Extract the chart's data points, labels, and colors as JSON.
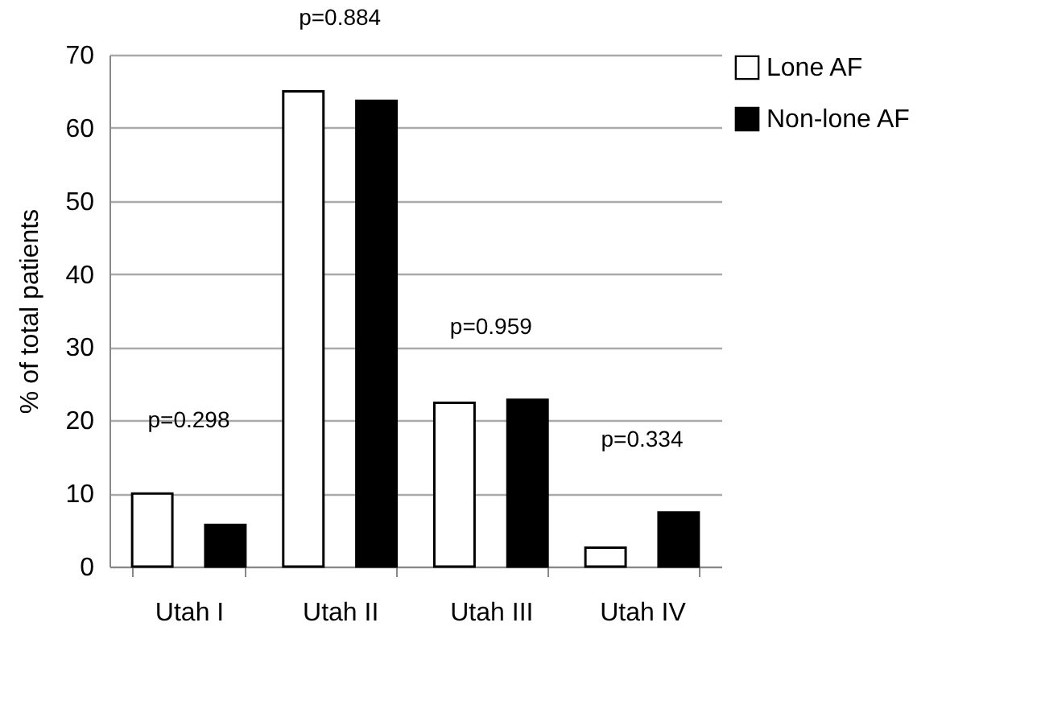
{
  "chart_data": {
    "type": "bar",
    "ylabel": "% of total patients",
    "categories": [
      "Utah I",
      "Utah II",
      "Utah III",
      "Utah IV"
    ],
    "series": [
      {
        "name": "Lone AF",
        "color": "#ffffff",
        "values": [
          10,
          65,
          22.4,
          2.6
        ]
      },
      {
        "name": "Non-lone AF",
        "color": "#000000",
        "values": [
          5.7,
          63.7,
          22.8,
          7.4
        ]
      }
    ],
    "ylim": [
      0,
      70
    ],
    "yticks": [
      0,
      10,
      20,
      30,
      40,
      50,
      60,
      70
    ],
    "grid": "y",
    "legend": "right",
    "annotations": [
      "p=0.298",
      "p=0.884",
      "p=0.959",
      "p=0.334"
    ]
  }
}
